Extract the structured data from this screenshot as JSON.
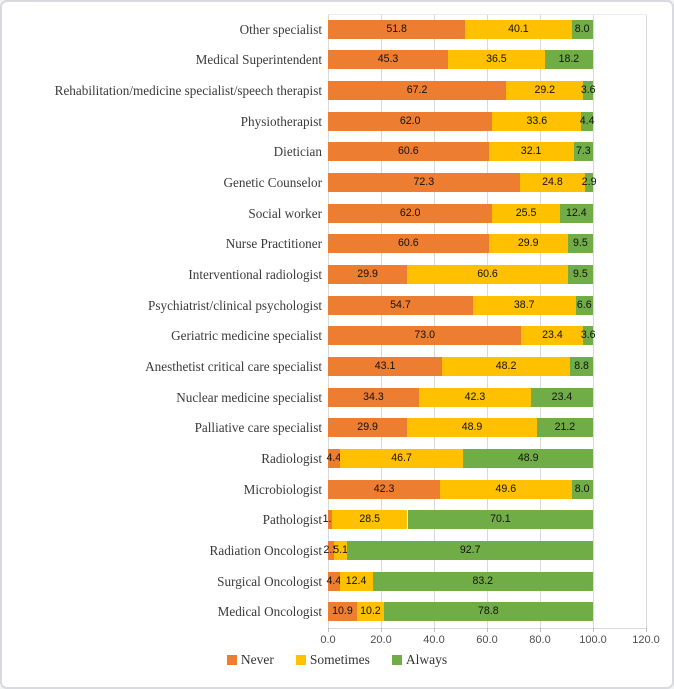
{
  "chart_data": {
    "type": "bar",
    "orientation": "horizontal",
    "stacked": true,
    "title": "",
    "xlabel": "",
    "ylabel": "",
    "xlim": [
      0,
      120
    ],
    "x_tick_values": [
      0,
      20,
      40,
      60,
      80,
      100,
      120
    ],
    "grid": "vertical",
    "legend_position": "bottom",
    "value_label_format": "one decimal place, centered in each segment",
    "categories": [
      "Other specialist",
      "Medical Superintendent",
      "Rehabilitation/medicine specialist/speech therapist",
      "Physiotherapist",
      "Dietician",
      "Genetic Counselor",
      "Social worker",
      "Nurse Practitioner",
      "Interventional radiologist",
      "Psychiatrist/clinical psychologist",
      "Geriatric medicine specialist",
      "Anesthetist critical care specialist",
      "Nuclear medicine specialist",
      "Palliative care specialist",
      "Radiologist",
      "Microbiologist",
      "Pathologist",
      "Radiation Oncologist",
      "Surgical Oncologist",
      "Medical Oncologist"
    ],
    "series": [
      {
        "name": "Never",
        "color": "#ED7D31",
        "values": [
          51.8,
          45.3,
          67.2,
          62.0,
          60.6,
          72.3,
          62.0,
          60.6,
          29.9,
          54.7,
          73.0,
          43.1,
          34.3,
          29.9,
          4.4,
          42.3,
          1.5,
          2.2,
          4.4,
          10.9
        ]
      },
      {
        "name": "Sometimes",
        "color": "#FFC000",
        "values": [
          40.1,
          36.5,
          29.2,
          33.6,
          32.1,
          24.8,
          25.5,
          29.9,
          60.6,
          38.7,
          23.4,
          48.2,
          42.3,
          48.9,
          46.7,
          49.6,
          28.5,
          5.1,
          12.4,
          10.2
        ]
      },
      {
        "name": "Always",
        "color": "#70AD47",
        "values": [
          8.0,
          18.2,
          3.6,
          4.4,
          7.3,
          2.9,
          12.4,
          9.5,
          9.5,
          6.6,
          3.6,
          8.8,
          23.4,
          21.2,
          48.9,
          8.0,
          70.1,
          92.7,
          83.2,
          78.8
        ]
      }
    ]
  },
  "styles": {
    "gridline_color": "#d9d9d9",
    "figure_border_color": "#d8dae0",
    "background": "#ffffff",
    "axis_text_color": "#4d4d4d",
    "category_text_color": "#3a3a3a",
    "value_text_color": "#111111"
  }
}
